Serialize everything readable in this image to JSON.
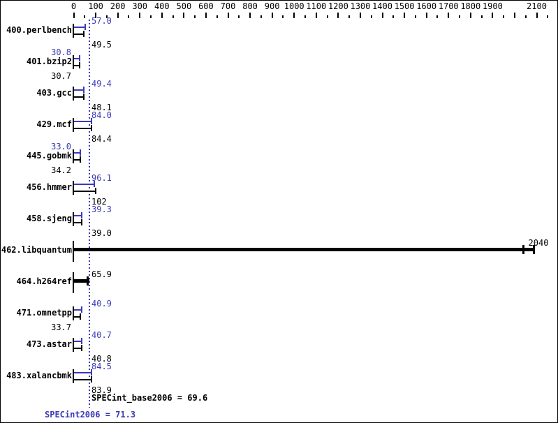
{
  "chart_data": {
    "type": "bar",
    "orientation": "horizontal",
    "title": "SPEC CPU2006 integer results chart",
    "axis": {
      "min": 0,
      "max": 2150,
      "minor_tick_step": 50,
      "label_step": 100,
      "labeled_max": 2100,
      "skipped_labels": [
        2000
      ],
      "position": "top"
    },
    "colors": {
      "peak": "#3a3ab8",
      "base": "#000000",
      "reference_line": "#3a3ab8",
      "background": "#ffffff"
    },
    "legend": {
      "peak_series": "SPECint2006 (peak, blue)",
      "base_series": "SPECint_base2006 (base, black)"
    },
    "benchmarks": [
      {
        "name": "400.perlbench",
        "peak": 57.0,
        "base": 49.5,
        "peak_label": "57.0",
        "base_label": "49.5"
      },
      {
        "name": "401.bzip2",
        "peak": 30.8,
        "base": 30.7,
        "peak_label": "30.8",
        "base_label": "30.7"
      },
      {
        "name": "403.gcc",
        "peak": 49.4,
        "base": 48.1,
        "peak_label": "49.4",
        "base_label": "48.1"
      },
      {
        "name": "429.mcf",
        "peak": 84.0,
        "base": 84.4,
        "peak_label": "84.0",
        "base_label": "84.4"
      },
      {
        "name": "445.gobmk",
        "peak": 33.0,
        "base": 34.2,
        "peak_label": "33.0",
        "base_label": "34.2"
      },
      {
        "name": "456.hmmer",
        "peak": 96.1,
        "base": 102,
        "peak_label": "96.1",
        "base_label": "102"
      },
      {
        "name": "458.sjeng",
        "peak": 39.3,
        "base": 39.0,
        "peak_label": "39.3",
        "base_label": "39.0"
      },
      {
        "name": "462.libquantum",
        "single": 2040,
        "single_label": "2040"
      },
      {
        "name": "464.h264ref",
        "single": 65.9,
        "single_label": "65.9"
      },
      {
        "name": "471.omnetpp",
        "peak": 40.9,
        "base": 33.7,
        "peak_label": "40.9",
        "base_label": "33.7"
      },
      {
        "name": "473.astar",
        "peak": 40.7,
        "base": 40.8,
        "peak_label": "40.7",
        "base_label": "40.8"
      },
      {
        "name": "483.xalancbmk",
        "peak": 84.5,
        "base": 83.9,
        "peak_label": "84.5",
        "base_label": "83.9"
      }
    ],
    "summary": {
      "base_text": "SPECint_base2006 = 69.6",
      "peak_text": "SPECint2006 = 71.3",
      "base_value": 69.6,
      "peak_value": 71.3
    }
  }
}
